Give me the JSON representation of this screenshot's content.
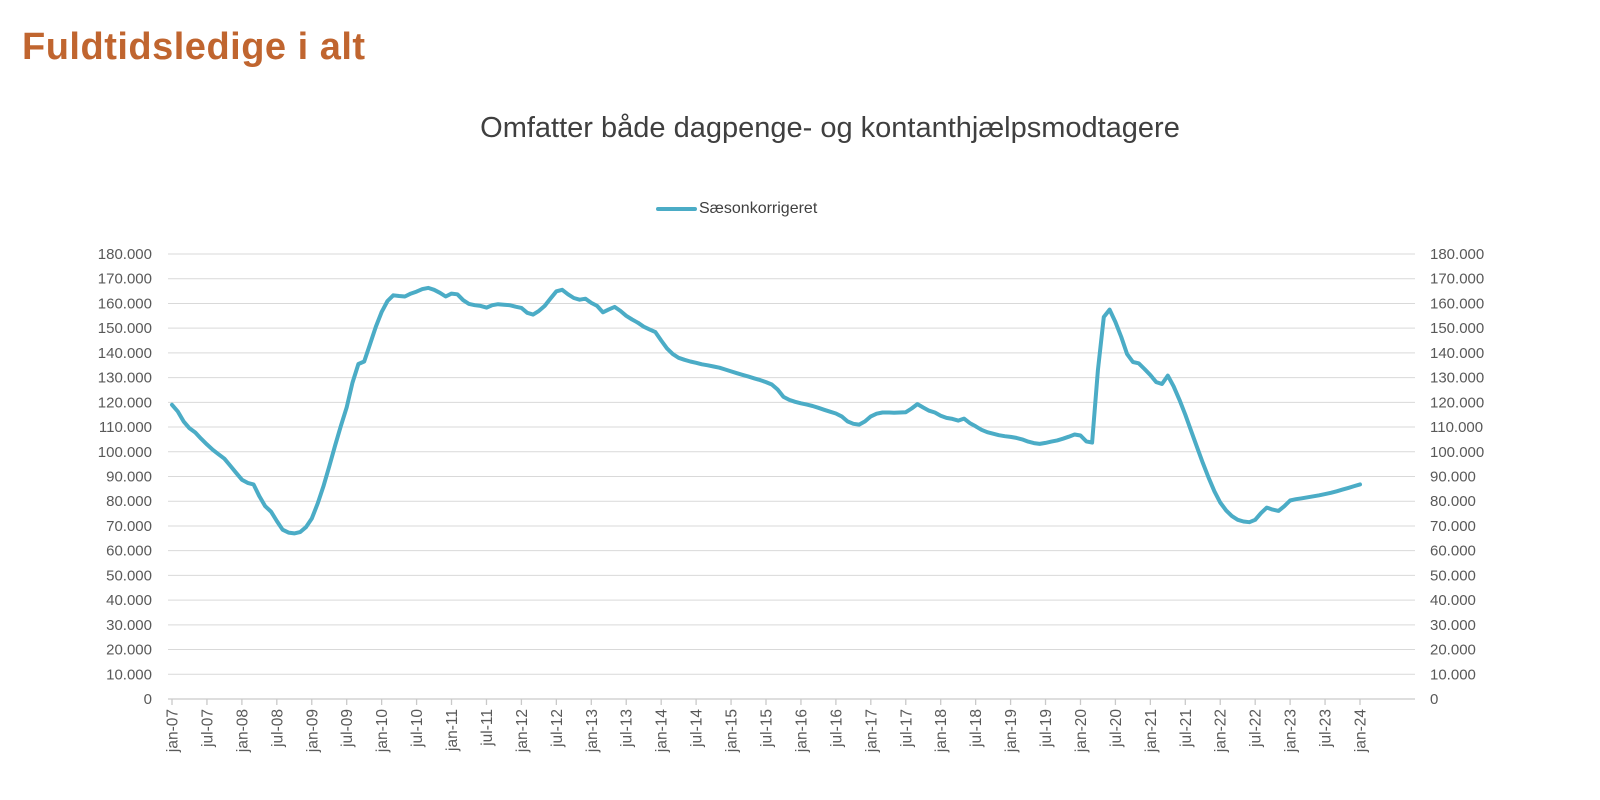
{
  "header": {
    "title": "Fuldtidsledige i alt"
  },
  "chart": {
    "subtitle": "Omfatter både dagpenge- og kontanthjælpsmodtagere",
    "legend": {
      "label": "Sæsonkorrigeret"
    }
  },
  "colors": {
    "title": "#C0652F",
    "subtitle": "#3F3F3F",
    "axis_text": "#595959",
    "gridline": "#D9D9D9",
    "axis_line": "#C9C9C9",
    "series_line": "#4BACC6"
  },
  "chart_data": {
    "type": "line",
    "title": "Fuldtidsledige i alt",
    "subtitle": "Omfatter både dagpenge- og kontanthjælpsmodtagere",
    "x_unit": "month",
    "x_range": [
      "jan-07",
      "jan-24"
    ],
    "x_tick_every_n_points": 6,
    "x_tick_labels": [
      "jan-07",
      "jul-07",
      "jan-08",
      "jul-08",
      "jan-09",
      "jul-09",
      "jan-10",
      "jul-10",
      "jan-11",
      "jul-11",
      "jan-12",
      "jul-12",
      "jan-13",
      "jul-13",
      "jan-14",
      "jul-14",
      "jan-15",
      "jul-15",
      "jan-16",
      "jul-16",
      "jan-17",
      "jul-17",
      "jan-18",
      "jul-18",
      "jan-19",
      "jul-19",
      "jan-20",
      "jul-20",
      "jan-21",
      "jul-21",
      "jan-22",
      "jul-22",
      "jan-23",
      "jul-23",
      "jan-24"
    ],
    "ylim": [
      0,
      180000
    ],
    "y_tick_step": 10000,
    "y_tick_labels": [
      "0",
      "10.000",
      "20.000",
      "30.000",
      "40.000",
      "50.000",
      "60.000",
      "70.000",
      "80.000",
      "90.000",
      "100.000",
      "110.000",
      "120.000",
      "130.000",
      "140.000",
      "150.000",
      "160.000",
      "170.000",
      "180.000"
    ],
    "y_axis_sides": "both",
    "grid": "horizontal",
    "legend_position": "top-center",
    "series": [
      {
        "name": "Sæsonkorrigeret",
        "color": "#4BACC6",
        "values": [
          119000,
          116300,
          112300,
          109500,
          107800,
          105300,
          103000,
          100800,
          99000,
          97200,
          94400,
          91500,
          88700,
          87400,
          86800,
          82000,
          78000,
          75800,
          72000,
          68500,
          67300,
          67000,
          67500,
          69500,
          73000,
          79000,
          86000,
          94000,
          102500,
          110500,
          118000,
          128000,
          135500,
          136500,
          143500,
          150500,
          156500,
          161000,
          163300,
          163000,
          162800,
          164000,
          164800,
          165800,
          166300,
          165500,
          164300,
          162800,
          164000,
          163700,
          161300,
          159800,
          159300,
          159000,
          158300,
          159300,
          159700,
          159500,
          159300,
          158700,
          158200,
          156200,
          155500,
          157000,
          159000,
          162000,
          164900,
          165500,
          163700,
          162200,
          161500,
          161900,
          160200,
          159000,
          156400,
          157600,
          158600,
          157000,
          155000,
          153500,
          152200,
          150600,
          149500,
          148400,
          145000,
          141800,
          139500,
          138000,
          137200,
          136500,
          136000,
          135400,
          135000,
          134500,
          134000,
          133300,
          132500,
          131800,
          131100,
          130400,
          129700,
          129000,
          128200,
          127200,
          125200,
          122200,
          121000,
          120200,
          119600,
          119100,
          118500,
          117800,
          117000,
          116200,
          115500,
          114300,
          112300,
          111300,
          111000,
          112300,
          114300,
          115400,
          115900,
          115900,
          115800,
          115900,
          116000,
          117500,
          119300,
          117900,
          116600,
          115900,
          114600,
          113700,
          113300,
          112600,
          113400,
          111600,
          110300,
          108900,
          107900,
          107300,
          106700,
          106300,
          106000,
          105600,
          105000,
          104100,
          103500,
          103200,
          103600,
          104100,
          104600,
          105300,
          106100,
          107000,
          106600,
          104200,
          103700,
          133000,
          154500,
          157500,
          152500,
          146500,
          139500,
          136300,
          135800,
          133500,
          131000,
          128200,
          127400,
          130800,
          126500,
          121000,
          115000,
          108500,
          102000,
          95500,
          89500,
          84000,
          79500,
          76300,
          74000,
          72500,
          71800,
          71500,
          72500,
          75200,
          77400,
          76600,
          76100,
          78000,
          80300,
          80800,
          81200,
          81600,
          82000,
          82400,
          82900,
          83400,
          84000,
          84700,
          85400,
          86100,
          86800
        ]
      }
    ]
  }
}
